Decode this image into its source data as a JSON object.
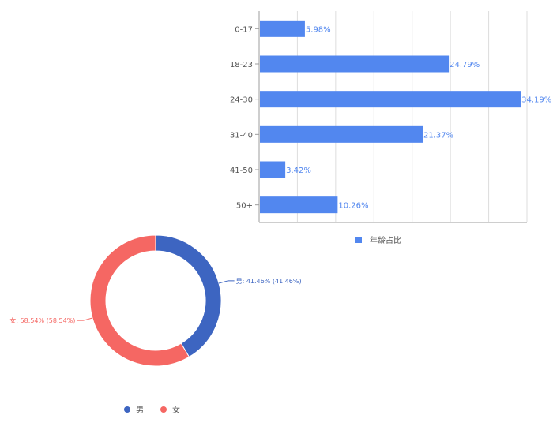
{
  "chart_data": [
    {
      "type": "bar",
      "orientation": "horizontal",
      "categories": [
        "0-17",
        "18-23",
        "24-30",
        "31-40",
        "41-50",
        "50+"
      ],
      "series": [
        {
          "name": "年龄占比",
          "values": [
            5.98,
            24.79,
            34.19,
            21.37,
            3.42,
            10.26
          ]
        }
      ],
      "data_labels": [
        "5.98%",
        "24.79%",
        "34.19%",
        "21.37%",
        "3.42%",
        "10.26%"
      ],
      "xlim": [
        0,
        35
      ],
      "grid": true,
      "legend": "bottom",
      "colors": {
        "bar": "#5287ef",
        "label": "#5287ef",
        "axis": "#9e9e9e",
        "grid": "#dddddd"
      }
    },
    {
      "type": "pie",
      "style": "donut",
      "slices": [
        {
          "name": "男",
          "value": 41.46,
          "label": "男: 41.46% (41.46%)",
          "color": "#3d65c1"
        },
        {
          "name": "女",
          "value": 58.54,
          "label": "女: 58.54% (58.54%)",
          "color": "#f56763"
        }
      ],
      "legend": "bottom"
    }
  ]
}
